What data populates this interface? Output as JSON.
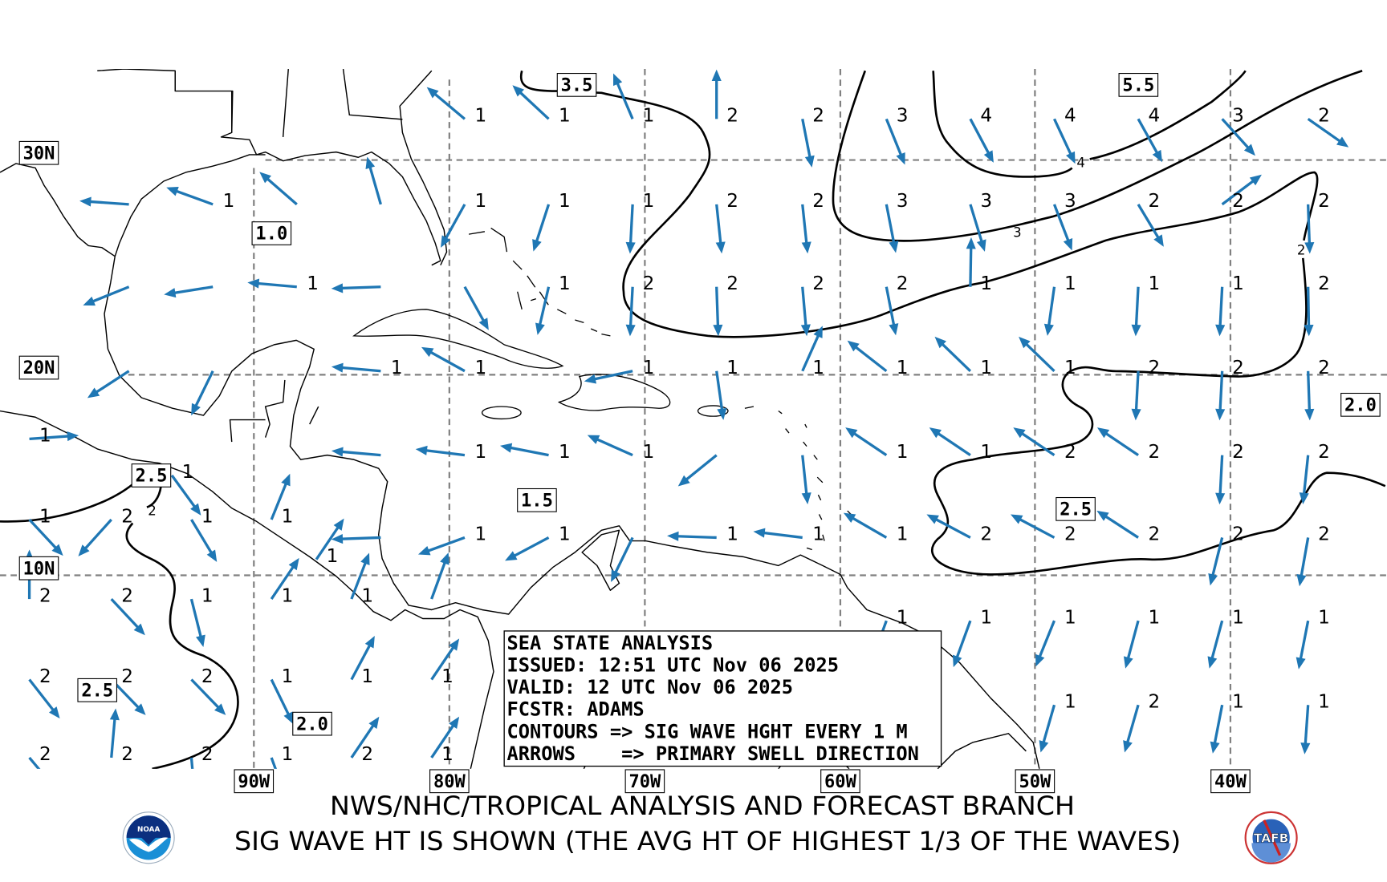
{
  "footer": {
    "line1": "NWS/NHC/TROPICAL ANALYSIS AND FORECAST BRANCH",
    "line2": "SIG WAVE HT IS SHOWN (THE AVG HT OF HIGHEST 1/3 OF THE WAVES)"
  },
  "info_box": {
    "lines": [
      "SEA STATE ANALYSIS",
      "ISSUED: 12:51 UTC Nov 06 2025",
      "VALID: 12 UTC Nov 06 2025",
      "FCSTR: ADAMS",
      "CONTOURS => SIG WAVE HGHT EVERY 1 M",
      "ARROWS    => PRIMARY SWELL DIRECTION"
    ]
  },
  "grid_labels": {
    "lat": [
      "30N",
      "20N",
      "10N"
    ],
    "lon": [
      "90W",
      "80W",
      "70W",
      "60W",
      "50W",
      "40W"
    ]
  },
  "contour_labels": [
    "3.5",
    "5.5",
    "1.0",
    "2.0",
    "2.5",
    "1.5",
    "2.5",
    "2.5",
    "2.0"
  ],
  "contour_inline_labels": [
    "4",
    "3",
    "2",
    "2"
  ],
  "colors": {
    "arrow": "#1f77b4",
    "contour": "#000000",
    "grid": "#808080",
    "coast": "#000000"
  },
  "logos": {
    "left": "noaa-logo",
    "right": "tafb-logo",
    "right_text": "TAFB",
    "left_text": "NOAA"
  },
  "atlantic_grid": {
    "lons": [
      -96.4,
      -92.1,
      -87.8,
      -83.5,
      -79.2,
      -74.9,
      -70.6,
      -66.3,
      -61.9,
      -57.6,
      -53.3,
      -49.0,
      -44.7,
      -40.4,
      -36.0
    ],
    "lats": [
      31.7,
      27.9,
      24.1,
      20.1,
      16.0,
      11.9,
      7.7,
      3.4
    ],
    "cells": [
      [
        null,
        null,
        null,
        null,
        [
          1,
          310
        ],
        [
          1,
          313
        ],
        [
          1,
          337
        ],
        [
          2,
          0
        ],
        [
          2,
          169
        ],
        [
          3,
          158
        ],
        [
          4,
          152
        ],
        [
          4,
          155
        ],
        [
          4,
          151
        ],
        [
          3,
          138
        ],
        [
          2,
          125
        ]
      ],
      [
        [
          null,
          274
        ],
        [
          1,
          290
        ],
        [
          null,
          311
        ],
        [
          null,
          344
        ],
        [
          1,
          209
        ],
        [
          1,
          198
        ],
        [
          1,
          183
        ],
        [
          2,
          174
        ],
        [
          2,
          174
        ],
        [
          3,
          169
        ],
        [
          3,
          163
        ],
        [
          3,
          159
        ],
        [
          2,
          149
        ],
        [
          2,
          53
        ],
        [
          2,
          178
        ]
      ],
      [
        [
          null,
          248
        ],
        [
          null,
          261
        ],
        [
          1,
          275
        ],
        [
          null,
          268
        ],
        [
          null,
          151
        ],
        [
          1,
          193
        ],
        [
          2,
          183
        ],
        [
          2,
          178
        ],
        [
          2,
          175
        ],
        [
          2,
          169
        ],
        [
          1,
          1
        ],
        [
          1,
          188
        ],
        [
          1,
          183
        ],
        [
          1,
          183
        ],
        [
          2,
          179
        ]
      ],
      [
        [
          null,
          237
        ],
        [
          null,
          206
        ],
        null,
        [
          1,
          275
        ],
        [
          1,
          299
        ],
        null,
        [
          1,
          258
        ],
        [
          1,
          172
        ],
        [
          1,
          24
        ],
        [
          1,
          308
        ],
        [
          1,
          314
        ],
        [
          1,
          314
        ],
        [
          2,
          183
        ],
        [
          2,
          183
        ],
        [
          2,
          178
        ]
      ],
      [
        null,
        null,
        null,
        [
          null,
          275
        ],
        [
          1,
          277
        ],
        [
          1,
          281
        ],
        [
          1,
          294
        ],
        [
          null,
          231
        ],
        [
          null,
          174
        ],
        [
          1,
          304
        ],
        [
          1,
          304
        ],
        [
          2,
          304
        ],
        [
          2,
          304
        ],
        [
          2,
          183
        ],
        [
          2,
          186
        ]
      ],
      [
        null,
        null,
        null,
        [
          null,
          268
        ],
        [
          1,
          250
        ],
        [
          1,
          242
        ],
        [
          null,
          206
        ],
        [
          1,
          272
        ],
        [
          1,
          277
        ],
        [
          1,
          300
        ],
        [
          2,
          298
        ],
        [
          2,
          298
        ],
        [
          2,
          303
        ],
        [
          2,
          194
        ],
        [
          2,
          190
        ]
      ],
      [
        null,
        null,
        null,
        null,
        null,
        null,
        null,
        null,
        null,
        [
          1,
          200
        ],
        [
          1,
          200
        ],
        [
          1,
          202
        ],
        [
          1,
          195
        ],
        [
          1,
          195
        ],
        [
          1,
          191
        ]
      ],
      [
        null,
        null,
        null,
        null,
        null,
        null,
        null,
        null,
        null,
        null,
        null,
        [
          1,
          196
        ],
        [
          2,
          196
        ],
        [
          1,
          191
        ],
        [
          1,
          184
        ]
      ]
    ]
  },
  "pacific_grid": {
    "lons": [
      -101.5,
      -97.3,
      -93.2,
      -89.1,
      -85.0,
      -80.9
    ],
    "lats": [
      16.8,
      12.8,
      8.8,
      4.7,
      0.7
    ],
    "cells": [
      [
        [
          1,
          86
        ],
        null,
        null,
        null,
        null,
        null
      ],
      [
        [
          1,
          137
        ],
        [
          2,
          222
        ],
        [
          1,
          149
        ],
        [
          1,
          22
        ],
        null,
        null
      ],
      [
        [
          2,
          0
        ],
        [
          2,
          137
        ],
        [
          1,
          166
        ],
        [
          1,
          34
        ],
        [
          1,
          21
        ],
        [
          null,
          20
        ]
      ],
      [
        [
          2,
          142
        ],
        [
          2,
          136
        ],
        [
          2,
          136
        ],
        [
          1,
          154
        ],
        [
          1,
          28
        ],
        [
          1,
          34
        ]
      ],
      [
        [
          2,
          140
        ],
        [
          2,
          5
        ],
        [
          2,
          175
        ],
        [
          1,
          160
        ],
        [
          2,
          34
        ],
        [
          1,
          34
        ]
      ]
    ]
  },
  "extra_points": [
    {
      "lon": -94.2,
      "lat": 15.0,
      "hs": 1,
      "dir": 144
    },
    {
      "lon": -86.8,
      "lat": 10.8,
      "hs": 1,
      "dir": 34
    }
  ]
}
